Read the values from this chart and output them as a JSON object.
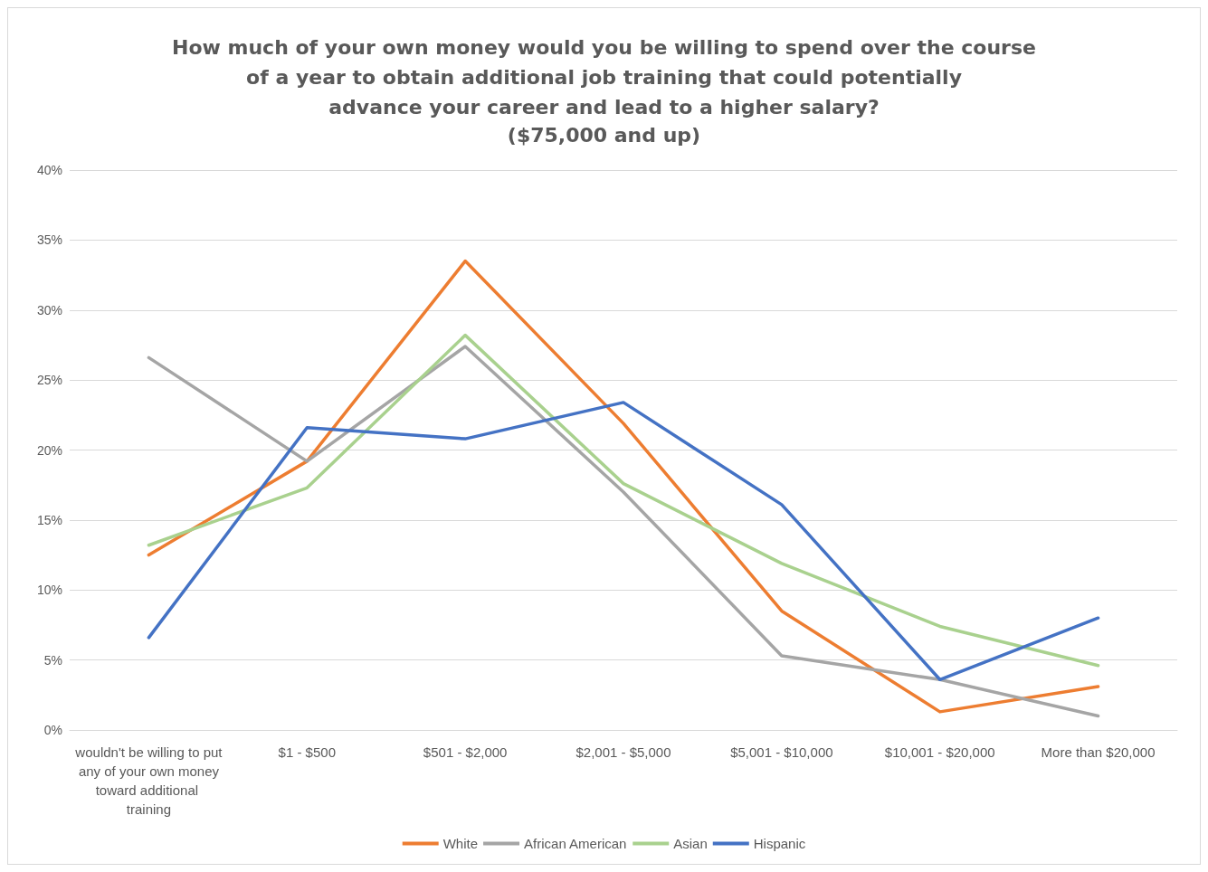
{
  "chart_data": {
    "type": "line",
    "title": "How much of your own money would you be willing to spend over the course of a year to obtain additional job training that could potentially advance your career and lead to a higher salary?",
    "subtitle": "($75,000 and up)",
    "categories": [
      "wouldn't be willing to put any of your own money toward additional training",
      "$1 - $500",
      "$501 - $2,000",
      "$2,001 - $5,000",
      "$5,001 - $10,000",
      "$10,001 - $20,000",
      "More than $20,000"
    ],
    "series": [
      {
        "name": "White",
        "color": "#ed7d31",
        "values": [
          12.5,
          19.2,
          33.5,
          21.9,
          8.5,
          1.3,
          3.1
        ]
      },
      {
        "name": "African American",
        "color": "#a5a5a5",
        "values": [
          26.6,
          19.2,
          27.4,
          17.0,
          5.3,
          3.6,
          1.0
        ]
      },
      {
        "name": "Asian",
        "color": "#a9d18e",
        "values": [
          13.2,
          17.3,
          28.2,
          17.6,
          11.9,
          7.4,
          4.6
        ]
      },
      {
        "name": "Hispanic",
        "color": "#4472c4",
        "values": [
          6.6,
          21.6,
          20.8,
          23.4,
          16.1,
          3.6,
          8.0
        ]
      }
    ],
    "ylim": [
      0,
      40
    ],
    "yticks": [
      {
        "value": 0,
        "label": "0%"
      },
      {
        "value": 5,
        "label": "5%"
      },
      {
        "value": 10,
        "label": "10%"
      },
      {
        "value": 15,
        "label": "15%"
      },
      {
        "value": 20,
        "label": "20%"
      },
      {
        "value": 25,
        "label": "25%"
      },
      {
        "value": 30,
        "label": "30%"
      },
      {
        "value": 35,
        "label": "35%"
      },
      {
        "value": 40,
        "label": "40%"
      }
    ],
    "grid": "y",
    "legend": "bottom",
    "marker": "none",
    "line_style": "solid"
  }
}
